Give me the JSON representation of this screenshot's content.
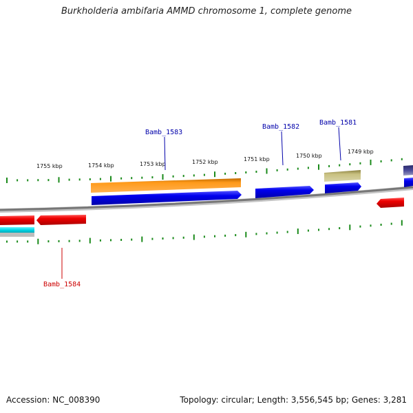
{
  "title": "Burkholderia ambifaria AMMD chromosome 1, complete genome",
  "footer": {
    "accession": "Accession: NC_008390",
    "stats": "Topology: circular; Length: 3,556,545 bp; Genes: 3,281"
  },
  "colors": {
    "backbone": "#888888",
    "tick": "#1a8a1a",
    "forward_gene": "#0000ee",
    "reverse_gene": "#ee0000",
    "orange_gene": "#ff8c00",
    "khaki_gene": "#b8b070",
    "purple_gene": "#3a3a8a",
    "cyan_gene": "#00d8e8",
    "label_blue": "#0000aa",
    "label_red": "#cc0000"
  },
  "kbp_labels": [
    "1755 kbp",
    "1754 kbp",
    "1753 kbp",
    "1752 kbp",
    "1751 kbp",
    "1750 kbp",
    "1749 kbp"
  ],
  "gene_labels": [
    "Bamb_1583",
    "Bamb_1582",
    "Bamb_1581",
    "Bamb_1584"
  ]
}
